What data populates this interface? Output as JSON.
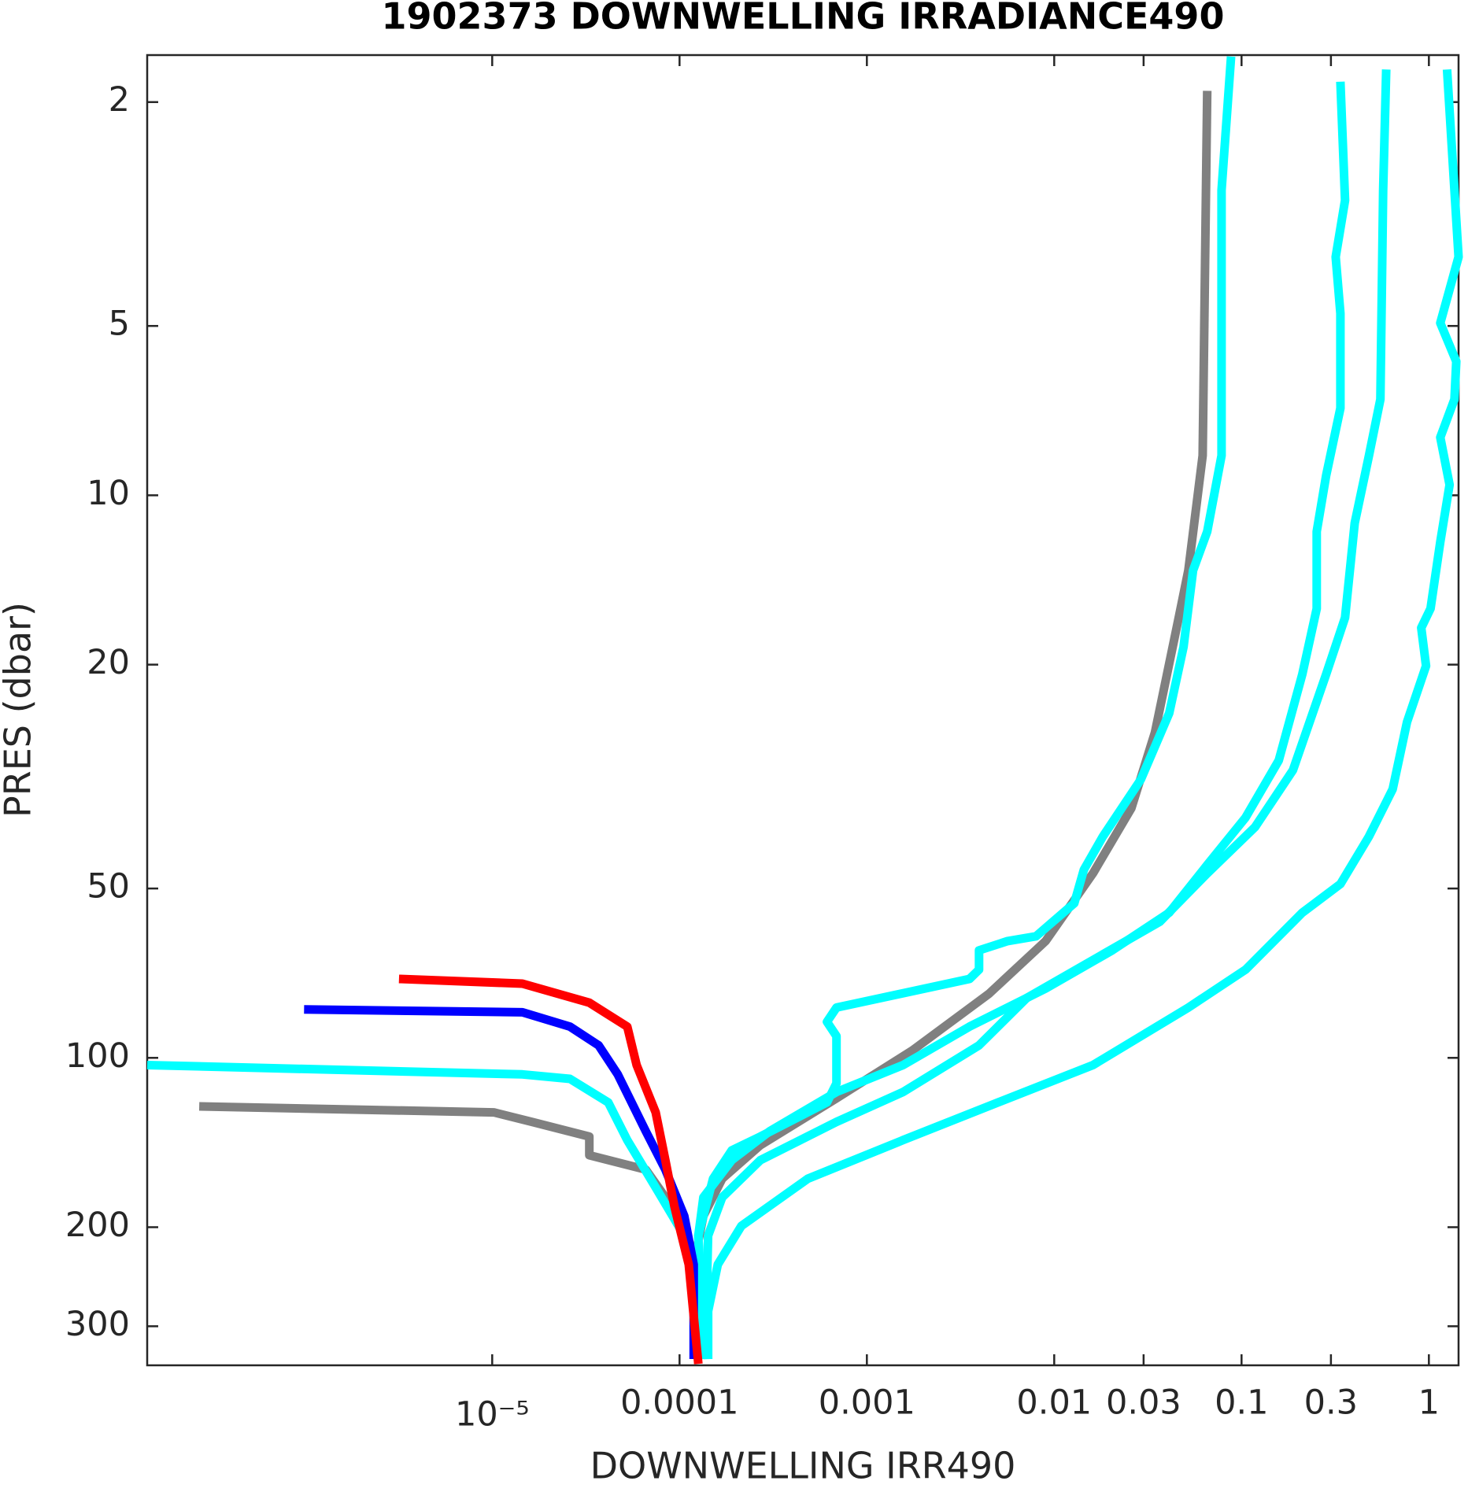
{
  "chart_data": {
    "type": "line",
    "title": "1902373  DOWNWELLING IRRADIANCE490",
    "x_label": "DOWNWELLING IRR490",
    "y_label": "PRES (dbar)",
    "xscale": "log",
    "yscale": "log",
    "y_reversed": true,
    "xlim": [
      1.44e-07,
      1.44
    ],
    "ylim": [
      1.65,
      352
    ],
    "xticks": [
      {
        "value": 1e-05,
        "label": "10⁻⁵"
      },
      0.0001,
      0.001,
      0.01,
      0.03,
      0.1,
      0.3,
      1
    ],
    "yticks": [
      2,
      5,
      10,
      20,
      50,
      100,
      200,
      300
    ],
    "series": [
      {
        "color": "#808080",
        "x": [
          0.0656,
          0.062,
          0.052,
          0.0462,
          0.0345,
          0.0258,
          0.0161,
          0.009,
          0.00447,
          0.00175,
          0.000688,
          0.00027,
          0.000169,
          0.000134,
          0.000119,
          0.000126
        ],
        "values": [
          1.91,
          8.5,
          13.6,
          16.5,
          26.4,
          36,
          47,
          62,
          77,
          97,
          118,
          143,
          164,
          191,
          233,
          343
        ]
      },
      {
        "color": "#808080",
        "x": [
          2.73e-07,
          1.02e-05,
          1.63e-05,
          3.3e-05,
          3.3e-05,
          6.6e-05,
          8.4e-05,
          0.000106,
          0.000119,
          0.000126
        ],
        "values": [
          122,
          125,
          130,
          138,
          149,
          158,
          177,
          207,
          251,
          343
        ]
      },
      {
        "color": "#00ffff",
        "x": [
          0.0879,
          0.0782,
          0.0782,
          0.0656,
          0.0551,
          0.049,
          0.0411,
          0.029,
          0.0182,
          0.0144,
          0.0128,
          0.008,
          0.00564,
          0.00397,
          0.00397,
          0.00353,
          0.000688,
          0.000612,
          0.000688,
          0.000688,
          0.000612,
          0.00027,
          0.00019,
          0.000151,
          0.000134,
          0.000126,
          0.000134
        ],
        "values": [
          1.66,
          2.87,
          8.5,
          11.6,
          13.6,
          18.6,
          24.4,
          32,
          40.4,
          46.3,
          53.1,
          60.8,
          62,
          64.4,
          69.7,
          72.4,
          81.4,
          86.3,
          91.5,
          111,
          120,
          138,
          146,
          164,
          191,
          207,
          343
        ]
      },
      {
        "color": "#00ffff",
        "x": [
          0.337,
          0.357,
          0.318,
          0.337,
          0.337,
          0.283,
          0.252,
          0.252,
          0.211,
          0.158,
          0.105,
          0.0656,
          0.0411,
          0.0204,
          0.009,
          0.00353,
          0.00156,
          0.000688,
          0.000303,
          0.00019,
          0.000134,
          0.000126,
          0.000134
        ],
        "values": [
          1.84,
          2.99,
          3.77,
          4.75,
          7.0,
          9.22,
          11.6,
          15.9,
          20.8,
          29.6,
          37.4,
          45.4,
          55.2,
          64.4,
          75.3,
          88,
          103,
          115,
          135,
          152,
          177,
          207,
          343
        ]
      },
      {
        "color": "#00ffff",
        "x": [
          0.592,
          0.57,
          0.551,
          0.479,
          0.402,
          0.357,
          0.283,
          0.188,
          0.118,
          0.0656,
          0.0366,
          0.0161,
          0.00713,
          0.00397,
          0.00156,
          0.000688,
          0.00027,
          0.000169,
          0.000142,
          0.000137
        ],
        "values": [
          1.75,
          2.87,
          6.75,
          8.5,
          11.2,
          16.5,
          20.8,
          30.8,
          38.9,
          47,
          57.3,
          67,
          78.3,
          95,
          115,
          130,
          152,
          177,
          207,
          343
        ]
      },
      {
        "color": "#00ffff",
        "x": [
          1.25,
          1.37,
          1.44,
          1.15,
          1.4,
          1.37,
          1.15,
          1.29,
          1.15,
          1.02,
          0.91,
          0.966,
          0.764,
          0.641,
          0.479,
          0.337,
          0.211,
          0.105,
          0.052,
          0.0161,
          0.00502,
          0.00156,
          0.000484,
          0.000214,
          0.00016,
          0.000142,
          0.000142
        ],
        "values": [
          1.75,
          2.87,
          3.77,
          4.94,
          5.78,
          6.75,
          7.89,
          9.58,
          12.1,
          15.9,
          17.2,
          20.1,
          25.3,
          33.3,
          40.4,
          49.1,
          55.2,
          69.7,
          81.4,
          103,
          120,
          140,
          164,
          199,
          233,
          282,
          343
        ]
      },
      {
        "color": "#00ffff",
        "x": [
          1.44e-07,
          1.45e-05,
          2.6e-05,
          4.16e-05,
          5.26e-05,
          7.46e-05,
          0.000106,
          0.000134,
          0.000142
        ],
        "values": [
          103,
          107,
          109,
          120,
          140,
          170,
          207,
          251,
          343
        ]
      },
      {
        "color": "#0000ff",
        "x": [
          9.9e-07,
          1.45e-05,
          2.6e-05,
          3.7e-05,
          4.68e-05,
          6.6e-05,
          8.4e-05,
          0.000106,
          0.000119,
          0.000119
        ],
        "values": [
          82,
          83,
          88,
          95,
          107,
          135,
          158,
          191,
          233,
          343
        ]
      },
      {
        "color": "#ff0000",
        "x": [
          3.18e-06,
          1.45e-05,
          3.3e-05,
          5.26e-05,
          5.9e-05,
          7.46e-05,
          8.4e-05,
          9.4e-05,
          0.000112,
          0.000126
        ],
        "values": [
          72.4,
          73.8,
          79.8,
          88,
          103,
          125,
          152,
          184,
          233,
          350
        ]
      }
    ]
  }
}
